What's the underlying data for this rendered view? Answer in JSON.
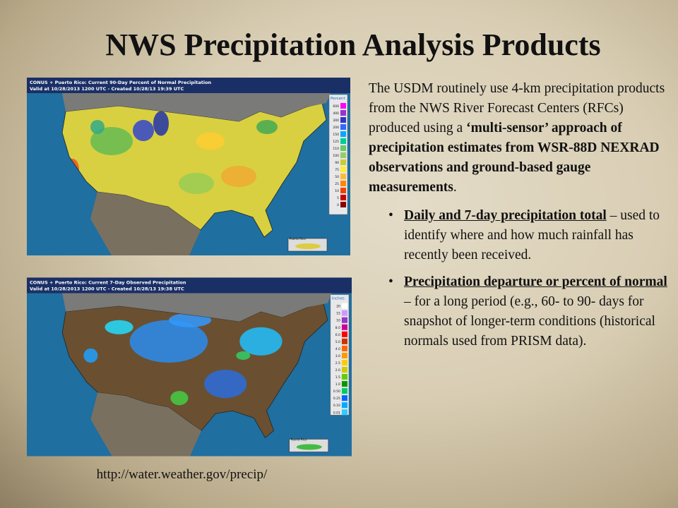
{
  "title": "NWS Precipitation Analysis Products",
  "intro": [
    "The USDM routinely use 4-km precipitation products from the NWS River Forecast Centers (RFCs) produced using a ",
    "‘multi-sensor’ approach of precipitation estimates from WSR-88D NEXRAD observations and ground-based gauge measurements",
    "."
  ],
  "bullets": [
    {
      "term": "Daily and 7-day precipitation total",
      "text": " – used to identify where and how much rainfall has recently been received."
    },
    {
      "term": "Precipitation departure or percent of normal",
      "text": " – for a long period (e.g., 60- to 90- days for snapshot of longer-term conditions (historical normals used from PRISM data)."
    }
  ],
  "url": "http://water.weather.gov/precip/",
  "maps": [
    {
      "header": "CONUS + Puerto Rico: Current 90-Day Percent of Normal Precipitation",
      "valid": "Valid at 10/28/2013 1200 UTC - Created 10/28/13 19:39 UTC",
      "inset": "Puerto Rico",
      "legend_title": "Percent",
      "legend": [
        "600",
        "400",
        "300",
        "200",
        "150",
        "125",
        "110",
        "100",
        "90",
        "75",
        "50",
        "25",
        "10",
        "5",
        "0"
      ],
      "colors": [
        "#ff00ff",
        "#9933cc",
        "#3333cc",
        "#3366ff",
        "#00aaff",
        "#00cc99",
        "#66cc66",
        "#99cc66",
        "#cccc33",
        "#ffee33",
        "#ffbb33",
        "#ff8800",
        "#ee4400",
        "#cc0000",
        "#880000"
      ]
    },
    {
      "header": "CONUS + Puerto Rico: Current 7-Day Observed Precipitation",
      "valid": "Valid at 10/28/2013 1200 UTC - Created 10/28/13 19:38 UTC",
      "inset": "Puerto Rico",
      "legend_title": "Inches",
      "legend": [
        "20",
        "15",
        "10",
        "8.0",
        "6.0",
        "5.0",
        "4.0",
        "3.0",
        "2.5",
        "2.0",
        "1.5",
        "1.0",
        "0.50",
        "0.25",
        "0.10",
        "0.01"
      ],
      "colors": [
        "#ffffff",
        "#cc99ff",
        "#9933cc",
        "#cc0099",
        "#ff0000",
        "#cc3300",
        "#ff6600",
        "#ff9900",
        "#ffcc00",
        "#cccc00",
        "#66cc00",
        "#009900",
        "#00cc66",
        "#0066ff",
        "#00aaff",
        "#33ccff"
      ]
    }
  ]
}
